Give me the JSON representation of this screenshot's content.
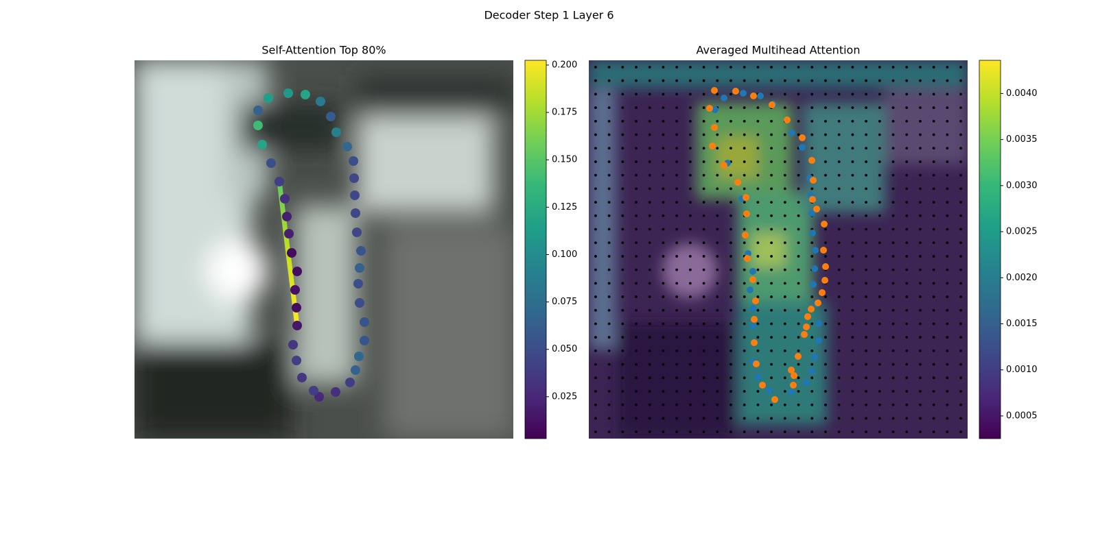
{
  "title": "Decoder Step 1 Layer 6",
  "chart_data": [
    {
      "type": "scatter",
      "title": "Self-Attention Top 80%",
      "xlim": [
        0,
        552
      ],
      "ylim": [
        552,
        0
      ],
      "x": [
        195,
        224,
        249,
        271,
        286,
        294,
        310,
        319,
        320,
        321,
        322,
        324,
        330,
        328,
        326,
        328,
        335,
        335,
        327,
        322,
        314,
        293,
        269,
        261,
        244,
        236,
        231,
        237,
        236,
        234,
        237,
        229,
        225,
        222,
        219,
        211,
        199,
        186,
        180,
        180
      ],
      "y": [
        55,
        48,
        50,
        60,
        82,
        105,
        126,
        147,
        172,
        197,
        223,
        251,
        278,
        303,
        326,
        354,
        382,
        409,
        432,
        452,
        470,
        484,
        491,
        482,
        463,
        438,
        415,
        387,
        361,
        335,
        308,
        281,
        253,
        228,
        202,
        177,
        150,
        123,
        95,
        73
      ],
      "values": [
        0.115,
        0.11,
        0.12,
        0.085,
        0.06,
        0.09,
        0.07,
        0.05,
        0.045,
        0.045,
        0.045,
        0.045,
        0.055,
        0.065,
        0.05,
        0.05,
        0.055,
        0.055,
        0.07,
        0.065,
        0.04,
        0.03,
        0.025,
        0.04,
        0.035,
        0.04,
        0.035,
        0.015,
        0.01,
        0.012,
        0.01,
        0.008,
        0.02,
        0.02,
        0.03,
        0.04,
        0.05,
        0.12,
        0.14,
        0.065
      ],
      "colorbar": {
        "lim": [
          0.0029,
          0.2025
        ],
        "ticks": [
          0.025,
          {
            "value": 0.05,
            "label": "0.050"
          },
          0.075,
          {
            "value": 0.1,
            "label": "0.100"
          },
          0.125,
          {
            "value": 0.15,
            "label": "0.150"
          },
          0.175,
          {
            "value": 0.2,
            "label": "0.200"
          }
        ]
      }
    },
    {
      "type": "scatter",
      "title": "Averaged Multihead Attention",
      "xlim": [
        0,
        552
      ],
      "ylim": [
        552,
        0
      ],
      "series": [
        {
          "color": "#1f77b4",
          "x": [
            197,
            225,
            250,
            269,
            296,
            311,
            322,
            324,
            325,
            326,
            330,
            329,
            327,
            332,
            335,
            335,
            329,
            325,
            317,
            295,
            263,
            247,
            239,
            239,
            239,
            235,
            239,
            232,
            223,
            202,
            184
          ],
          "y": [
            55,
            48,
            52,
            64,
            106,
            127,
            172,
            197,
            223,
            252,
            277,
            304,
            327,
            355,
            384,
            409,
            433,
            453,
            470,
            484,
            482,
            462,
            440,
            388,
            362,
            335,
            308,
            282,
            202,
            150,
            72
          ]
        },
        {
          "color": "#ff7f0e",
          "x": [
            183,
            214,
            240,
            267,
            289,
            311,
            325,
            327,
            326,
            332,
            343,
            342,
            345,
            344,
            340,
            334,
            324,
            319,
            317,
            314,
            305,
            295,
            299,
            298,
            271,
            253,
            244,
            241,
            241,
            243,
            239,
            231,
            228,
            230,
            229,
            217,
            197,
            180,
            183,
            176
          ],
          "y": [
            44,
            45,
            52,
            65,
            87,
            113,
            146,
            175,
            203,
            217,
            239,
            277,
            301,
            321,
            339,
            354,
            363,
            374,
            389,
            400,
            432,
            452,
            460,
            474,
            495,
            474,
            443,
            412,
            378,
            351,
            320,
            289,
            255,
            224,
            200,
            178,
            153,
            125,
            98,
            70
          ]
        }
      ],
      "colorbar": {
        "lim": [
          0.000254,
          0.00436
        ],
        "ticks": [
          0.0005,
          {
            "value": 0.001,
            "label": "0.0010"
          },
          0.0015,
          {
            "value": 0.002,
            "label": "0.0020"
          },
          0.0025,
          {
            "value": 0.003,
            "label": "0.0030"
          },
          0.0035,
          {
            "value": 0.004,
            "label": "0.0040"
          }
        ]
      }
    }
  ]
}
